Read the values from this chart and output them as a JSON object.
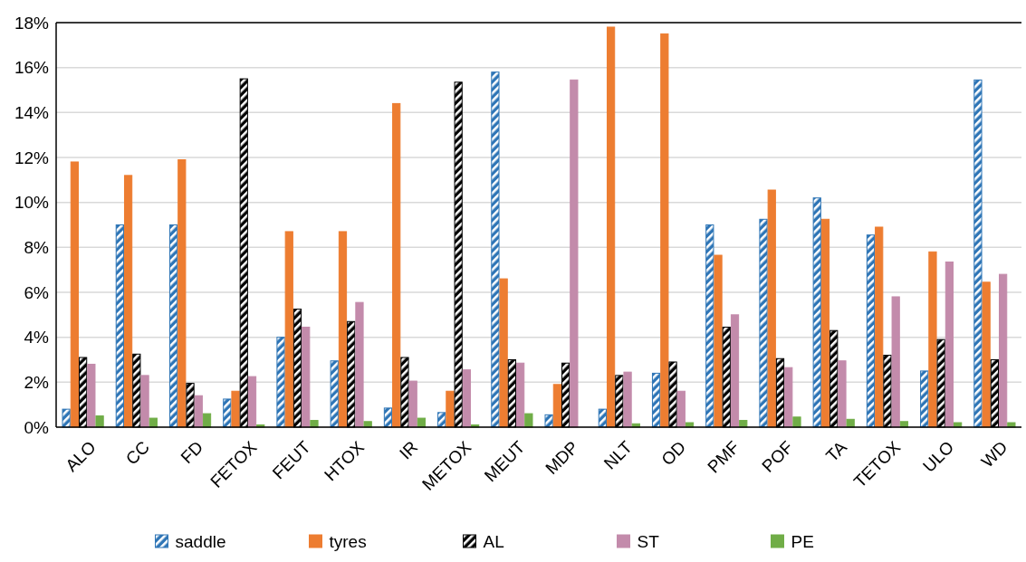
{
  "chart_data": {
    "type": "bar",
    "categories": [
      "ALO",
      "CC",
      "FD",
      "FETOX",
      "FEUT",
      "HTOX",
      "IR",
      "METOX",
      "MEUT",
      "MDP",
      "NLT",
      "OD",
      "PMF",
      "POF",
      "TA",
      "TETOX",
      "ULO",
      "WD"
    ],
    "series": [
      {
        "name": "saddle",
        "color": "#2e75b6",
        "values": [
          0.8,
          9.0,
          9.0,
          1.25,
          4.0,
          2.95,
          0.85,
          0.65,
          15.8,
          0.55,
          0.8,
          2.4,
          9.0,
          9.25,
          10.2,
          8.55,
          2.5,
          15.45
        ]
      },
      {
        "name": "tyres",
        "color": "#ed7d31",
        "values": [
          11.8,
          11.2,
          11.9,
          1.6,
          8.7,
          8.7,
          14.4,
          1.6,
          6.6,
          1.9,
          17.8,
          17.5,
          7.65,
          10.55,
          9.25,
          8.9,
          7.8,
          6.45
        ]
      },
      {
        "name": "AL",
        "color": "#000000",
        "values": [
          3.1,
          3.25,
          1.95,
          15.5,
          5.25,
          4.7,
          3.1,
          15.35,
          3.0,
          2.85,
          2.3,
          2.9,
          4.45,
          3.05,
          4.3,
          3.2,
          3.9,
          3.0
        ]
      },
      {
        "name": "ST",
        "color": "#c38bab",
        "values": [
          2.8,
          2.3,
          1.4,
          2.25,
          4.45,
          5.55,
          2.05,
          2.55,
          2.85,
          15.45,
          2.45,
          1.6,
          5.0,
          2.65,
          2.95,
          5.8,
          7.35,
          6.8
        ]
      },
      {
        "name": "PE",
        "color": "#70ad47",
        "values": [
          0.5,
          0.4,
          0.6,
          0.1,
          0.3,
          0.25,
          0.4,
          0.1,
          0.6,
          null,
          0.15,
          0.2,
          0.3,
          0.45,
          0.35,
          0.25,
          0.2,
          0.2
        ]
      }
    ],
    "ylim": [
      0,
      18
    ],
    "yticks": [
      {
        "value": 0,
        "label": "0%"
      },
      {
        "value": 2,
        "label": "2%"
      },
      {
        "value": 4,
        "label": "4%"
      },
      {
        "value": 6,
        "label": "6%"
      },
      {
        "value": 8,
        "label": "8%"
      },
      {
        "value": 10,
        "label": "10%"
      },
      {
        "value": 12,
        "label": "12%"
      },
      {
        "value": 14,
        "label": "14%"
      },
      {
        "value": 16,
        "label": "16%"
      },
      {
        "value": 18,
        "label": "18%"
      }
    ],
    "grid": "y",
    "legend": "bottom"
  }
}
